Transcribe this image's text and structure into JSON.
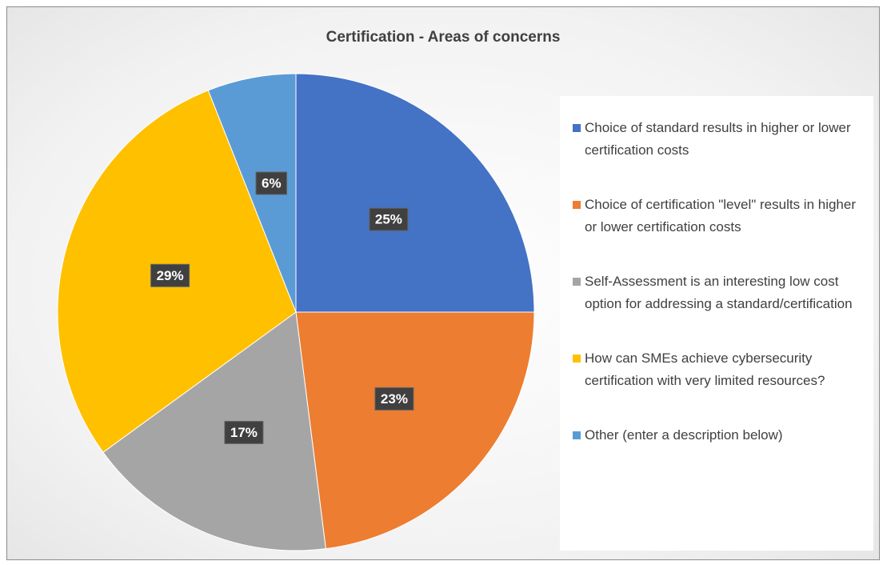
{
  "chart_data": {
    "type": "pie",
    "title": "Certification - Areas of concerns",
    "categories": [
      "Choice of standard results in higher or lower certification costs",
      "Choice of certification \"level\" results in higher or lower certification costs",
      "Self-Assessment is an interesting low cost option for addressing a standard/certification",
      "How can SMEs achieve cybersecurity certification with very limited resources?",
      "Other (enter a description below)"
    ],
    "values": [
      25,
      23,
      17,
      29,
      6
    ],
    "value_labels": [
      "25%",
      "23%",
      "17%",
      "29%",
      "6%"
    ],
    "colors": [
      "#4472c4",
      "#ed7d31",
      "#a5a5a5",
      "#ffc000",
      "#5b9bd5"
    ],
    "legend": "right"
  }
}
